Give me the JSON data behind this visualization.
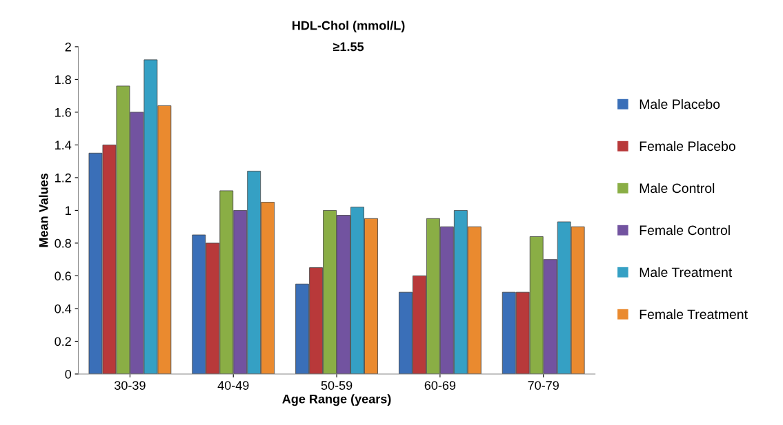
{
  "chart_data": {
    "type": "bar",
    "title": "HDL-Chol (mmol/L)",
    "subtitle": "≥1.55",
    "xlabel": "Age Range (years)",
    "ylabel": "Mean Values",
    "categories": [
      "30-39",
      "40-49",
      "50-59",
      "60-69",
      "70-79"
    ],
    "series": [
      {
        "name": "Male Placebo",
        "color": "#3a6fb8",
        "values": [
          1.35,
          0.85,
          0.55,
          0.5,
          0.5
        ]
      },
      {
        "name": "Female Placebo",
        "color": "#b8393a",
        "values": [
          1.4,
          0.8,
          0.65,
          0.6,
          0.5
        ]
      },
      {
        "name": "Male Control",
        "color": "#8aae45",
        "values": [
          1.76,
          1.12,
          1.0,
          0.95,
          0.84
        ]
      },
      {
        "name": "Female Control",
        "color": "#7253a0",
        "values": [
          1.6,
          1.0,
          0.97,
          0.9,
          0.7
        ]
      },
      {
        "name": "Male Treatment",
        "color": "#35a0c4",
        "values": [
          1.92,
          1.24,
          1.02,
          1.0,
          0.93
        ]
      },
      {
        "name": "Female Treatment",
        "color": "#ea8a2f",
        "values": [
          1.64,
          1.05,
          0.95,
          0.9,
          0.9
        ]
      }
    ],
    "ylim": [
      0,
      2
    ],
    "yticks": [
      0,
      0.2,
      0.4,
      0.6,
      0.8,
      1,
      1.2,
      1.4,
      1.6,
      1.8,
      2
    ],
    "grid": false,
    "legend": "right"
  }
}
